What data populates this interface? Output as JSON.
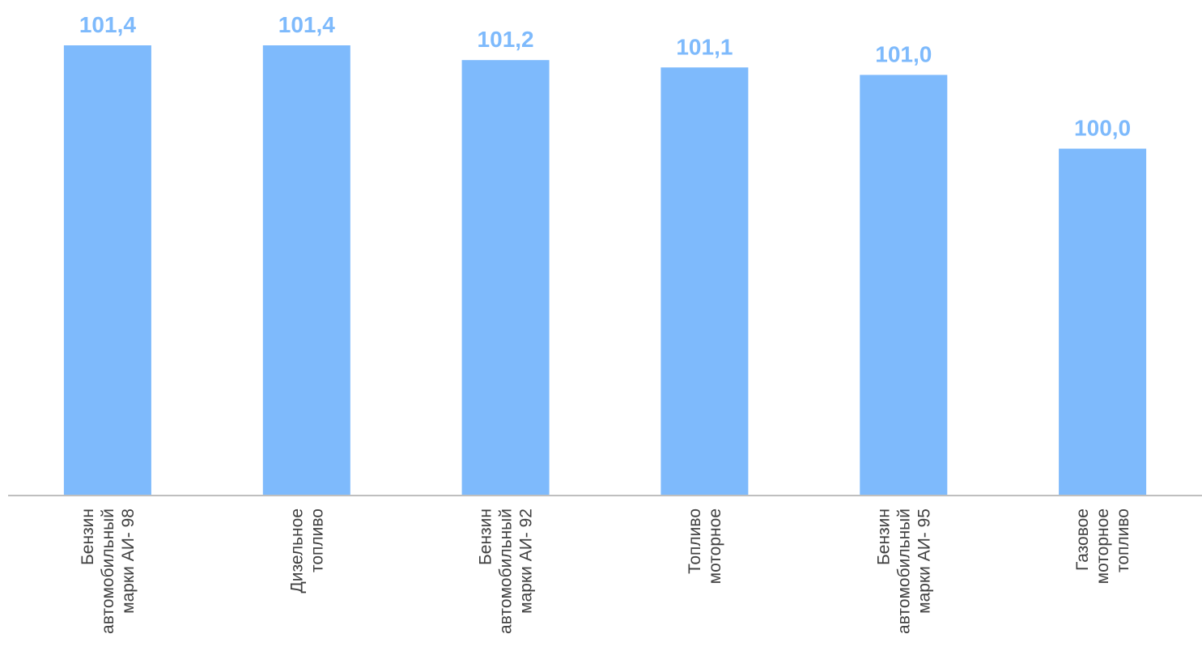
{
  "chart_data": {
    "type": "bar",
    "title": "",
    "xlabel": "",
    "ylabel": "",
    "categories": [
      [
        "Бензин",
        "автомобильный",
        "марки АИ- 98"
      ],
      [
        "Дизельное",
        "топливо"
      ],
      [
        "Бензин",
        "автомобильный",
        "марки АИ- 92"
      ],
      [
        "Топливо",
        "моторное"
      ],
      [
        "Бензин",
        "автомобильный",
        "марки АИ- 95"
      ],
      [
        "Газовое",
        "моторное",
        "топливо"
      ]
    ],
    "values": [
      101.4,
      101.4,
      101.2,
      101.1,
      101.0,
      100.0
    ],
    "value_labels": [
      "101,4",
      "101,4",
      "101,2",
      "101,1",
      "101,0",
      "100,0"
    ],
    "ylim": [
      95.3,
      101.4
    ],
    "grid": false,
    "legend": "none",
    "colors": {
      "bar": "#7EBAFC",
      "value_label": "#7EBAFC",
      "axis": "#BFBFBF",
      "category_label": "#404040"
    }
  }
}
